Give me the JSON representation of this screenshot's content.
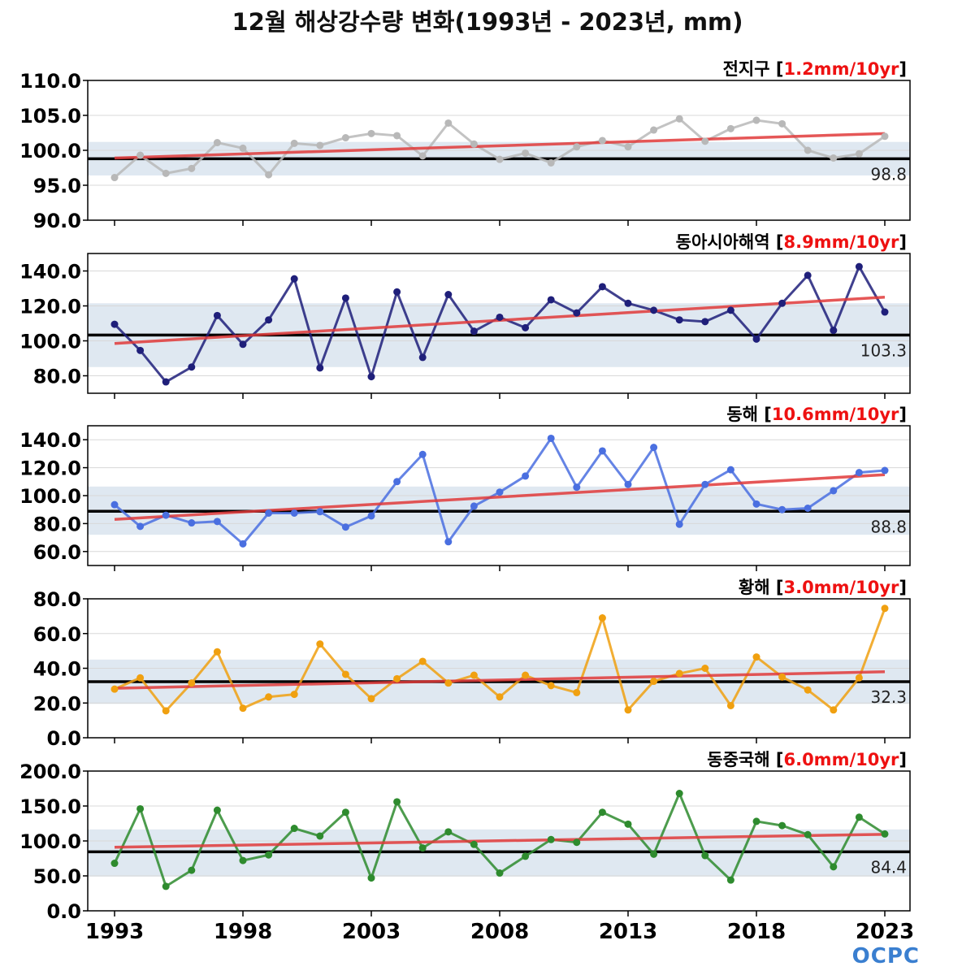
{
  "title": "12월 해상강수량 변화(1993년 - 2023년, mm)",
  "logo": "OCPC",
  "chart_data": [
    {
      "type": "line",
      "name": "전지구",
      "trend": "1.2mm/10yr",
      "mean_label": "98.8",
      "mean": 98.8,
      "band": [
        96.4,
        101.2
      ],
      "ylim": [
        90,
        110
      ],
      "yticks": [
        90,
        95,
        100,
        105,
        110
      ],
      "color": "#b8b8b8",
      "trend_line": [
        98.9,
        102.4
      ],
      "x": [
        1993,
        1994,
        1995,
        1996,
        1997,
        1998,
        1999,
        2000,
        2001,
        2002,
        2003,
        2004,
        2005,
        2006,
        2007,
        2008,
        2009,
        2010,
        2011,
        2012,
        2013,
        2014,
        2015,
        2016,
        2017,
        2018,
        2019,
        2020,
        2021,
        2022,
        2023
      ],
      "values": [
        96.1,
        99.3,
        96.7,
        97.4,
        101.1,
        100.3,
        96.5,
        101.0,
        100.7,
        101.8,
        102.4,
        102.1,
        99.2,
        103.9,
        100.9,
        98.7,
        99.6,
        98.2,
        100.5,
        101.4,
        100.5,
        102.9,
        104.5,
        101.3,
        103.1,
        104.3,
        103.8,
        100.0,
        98.9,
        99.5,
        102.0
      ]
    },
    {
      "type": "line",
      "name": "동아시아해역",
      "trend": "8.9mm/10yr",
      "mean_label": "103.3",
      "mean": 103.3,
      "band": [
        85,
        121.5
      ],
      "ylim": [
        70,
        150
      ],
      "yticks": [
        80,
        100,
        120,
        140
      ],
      "color": "#1f1f7a",
      "trend_line": [
        98.5,
        125.0
      ],
      "x": [
        1993,
        1994,
        1995,
        1996,
        1997,
        1998,
        1999,
        2000,
        2001,
        2002,
        2003,
        2004,
        2005,
        2006,
        2007,
        2008,
        2009,
        2010,
        2011,
        2012,
        2013,
        2014,
        2015,
        2016,
        2017,
        2018,
        2019,
        2020,
        2021,
        2022,
        2023
      ],
      "values": [
        109.5,
        94.5,
        76.5,
        85.0,
        114.5,
        98.0,
        112.0,
        135.5,
        84.5,
        124.5,
        79.5,
        128.0,
        90.5,
        126.5,
        105.5,
        113.5,
        107.5,
        123.5,
        116.0,
        131.0,
        121.5,
        117.5,
        112.0,
        111.0,
        117.5,
        101.0,
        121.5,
        137.5,
        106.0,
        142.5,
        116.5
      ]
    },
    {
      "type": "line",
      "name": "동해",
      "trend": "10.6mm/10yr",
      "mean_label": "88.8",
      "mean": 88.8,
      "band": [
        72,
        106.5
      ],
      "ylim": [
        50,
        150
      ],
      "yticks": [
        60,
        80,
        100,
        120,
        140
      ],
      "color": "#4a6fe0",
      "trend_line": [
        83.0,
        115.0
      ],
      "x": [
        1993,
        1994,
        1995,
        1996,
        1997,
        1998,
        1999,
        2000,
        2001,
        2002,
        2003,
        2004,
        2005,
        2006,
        2007,
        2008,
        2009,
        2010,
        2011,
        2012,
        2013,
        2014,
        2015,
        2016,
        2017,
        2018,
        2019,
        2020,
        2021,
        2022,
        2023
      ],
      "values": [
        93.5,
        78.0,
        86.0,
        80.5,
        81.5,
        65.5,
        87.5,
        87.5,
        88.5,
        77.5,
        85.5,
        110.0,
        129.5,
        67.0,
        92.5,
        102.5,
        114.0,
        141.0,
        106.0,
        132.0,
        108.0,
        134.5,
        79.5,
        108.0,
        118.5,
        94.0,
        90.0,
        91.0,
        103.5,
        116.5,
        118.0
      ]
    },
    {
      "type": "line",
      "name": "황해",
      "trend": "3.0mm/10yr",
      "mean_label": "32.3",
      "mean": 32.3,
      "band": [
        19.5,
        45
      ],
      "ylim": [
        0,
        80
      ],
      "yticks": [
        0,
        20,
        40,
        60,
        80
      ],
      "color": "#f0a010",
      "trend_line": [
        28.5,
        38.0
      ],
      "x": [
        1993,
        1994,
        1995,
        1996,
        1997,
        1998,
        1999,
        2000,
        2001,
        2002,
        2003,
        2004,
        2005,
        2006,
        2007,
        2008,
        2009,
        2010,
        2011,
        2012,
        2013,
        2014,
        2015,
        2016,
        2017,
        2018,
        2019,
        2020,
        2021,
        2022,
        2023
      ],
      "values": [
        28.0,
        34.5,
        15.5,
        31.5,
        49.5,
        17.0,
        23.5,
        25.0,
        54.0,
        36.5,
        22.5,
        34.0,
        44.0,
        31.5,
        36.0,
        23.5,
        36.0,
        30.0,
        26.0,
        69.0,
        16.0,
        32.5,
        37.0,
        40.0,
        18.5,
        46.5,
        35.0,
        27.5,
        16.0,
        34.5,
        74.5
      ]
    },
    {
      "type": "line",
      "name": "동중국해",
      "trend": "6.0mm/10yr",
      "mean_label": "84.4",
      "mean": 84.4,
      "band": [
        49,
        116.5
      ],
      "ylim": [
        0,
        200
      ],
      "yticks": [
        0,
        50,
        100,
        150,
        200
      ],
      "color": "#2e8b2e",
      "trend_line": [
        91.0,
        109.5
      ],
      "x": [
        1993,
        1994,
        1995,
        1996,
        1997,
        1998,
        1999,
        2000,
        2001,
        2002,
        2003,
        2004,
        2005,
        2006,
        2007,
        2008,
        2009,
        2010,
        2011,
        2012,
        2013,
        2014,
        2015,
        2016,
        2017,
        2018,
        2019,
        2020,
        2021,
        2022,
        2023
      ],
      "values": [
        68.0,
        146.0,
        35.0,
        58.0,
        144.0,
        72.0,
        80.0,
        118.0,
        107.0,
        141.0,
        47.0,
        156.0,
        90.0,
        113.0,
        95.0,
        54.0,
        78.0,
        102.0,
        98.0,
        141.0,
        124.0,
        81.0,
        168.0,
        79.0,
        44.0,
        128.0,
        122.0,
        109.0,
        63.0,
        134.0,
        110.0
      ]
    }
  ],
  "x_axis": {
    "ticks": [
      1993,
      1998,
      2003,
      2008,
      2013,
      2018,
      2023
    ]
  }
}
